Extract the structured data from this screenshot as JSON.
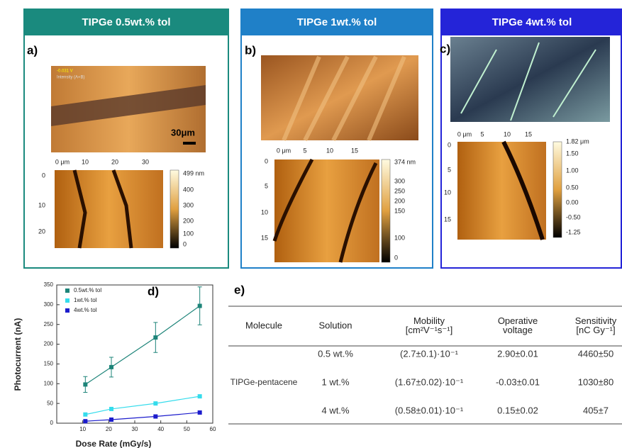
{
  "panels": [
    {
      "header": "TIPGe 0.5wt.% tol",
      "label": "a)",
      "image_text": [
        "-0.031 V",
        "Intensity (A+B)"
      ],
      "scale_bar": "30μm",
      "afm_x": [
        "0 μm",
        "10",
        "20",
        "30"
      ],
      "afm_y": [
        "0",
        "10",
        "20"
      ],
      "colorbar": [
        "499 nm",
        "400",
        "300",
        "200",
        "100",
        "0"
      ]
    },
    {
      "header": "TIPGe 1wt.% tol",
      "label": "b)",
      "afm_x": [
        "0 μm",
        "5",
        "10",
        "15"
      ],
      "afm_y": [
        "0",
        "5",
        "10",
        "15"
      ],
      "colorbar": [
        "374 nm",
        "300",
        "250",
        "200",
        "150",
        "100",
        "0"
      ]
    },
    {
      "header": "TIPGe 4wt.% tol",
      "label": "c)",
      "afm_x": [
        "0 μm",
        "5",
        "10",
        "15"
      ],
      "afm_y": [
        "0",
        "5",
        "10",
        "15"
      ],
      "colorbar": [
        "1.82 μm",
        "1.50",
        "1.00",
        "0.50",
        "0.00",
        "-0.50",
        "-1.25"
      ]
    }
  ],
  "chart_data": {
    "type": "scatter",
    "label": "d)",
    "x_label": "Dose Rate (mGy/s)",
    "y_label": "Photocurrent (nA)",
    "xlim": [
      0,
      60
    ],
    "xticks": [
      10,
      20,
      30,
      40,
      50,
      60
    ],
    "ylim": [
      0,
      350
    ],
    "yticks": [
      0,
      50,
      100,
      150,
      200,
      250,
      300,
      350
    ],
    "series": [
      {
        "name": "0.5wt.% tol",
        "color": "#1d8479",
        "x": [
          11,
          21,
          38,
          55
        ],
        "values": [
          98,
          142,
          217,
          297
        ],
        "errors": [
          20,
          25,
          38,
          48
        ]
      },
      {
        "name": "1wt.% tol",
        "color": "#35dcec",
        "x": [
          11,
          21,
          38,
          55
        ],
        "values": [
          22,
          36,
          50,
          68
        ]
      },
      {
        "name": "4wt.% tol",
        "color": "#1c1ccc",
        "x": [
          11,
          21,
          38,
          55
        ],
        "values": [
          5,
          9,
          17,
          27
        ]
      }
    ]
  },
  "table": {
    "label": "e)",
    "columns": [
      "Molecule",
      "Solution",
      "Mobility [cm²V⁻¹s⁻¹]",
      "Operative voltage",
      "Sensitivity [nC Gy⁻¹]"
    ],
    "molecule": "TIPGe-pentacene",
    "rows": [
      [
        "0.5 wt.%",
        "(2.7±0.1)·10⁻¹",
        "2.90±0.01",
        "4460±50"
      ],
      [
        "1 wt.%",
        "(1.67±0.02)·10⁻¹",
        "-0.03±0.01",
        "1030±80"
      ],
      [
        "4 wt.%",
        "(0.58±0.01)·10⁻¹",
        "0.15±0.02",
        "405±7"
      ]
    ]
  }
}
